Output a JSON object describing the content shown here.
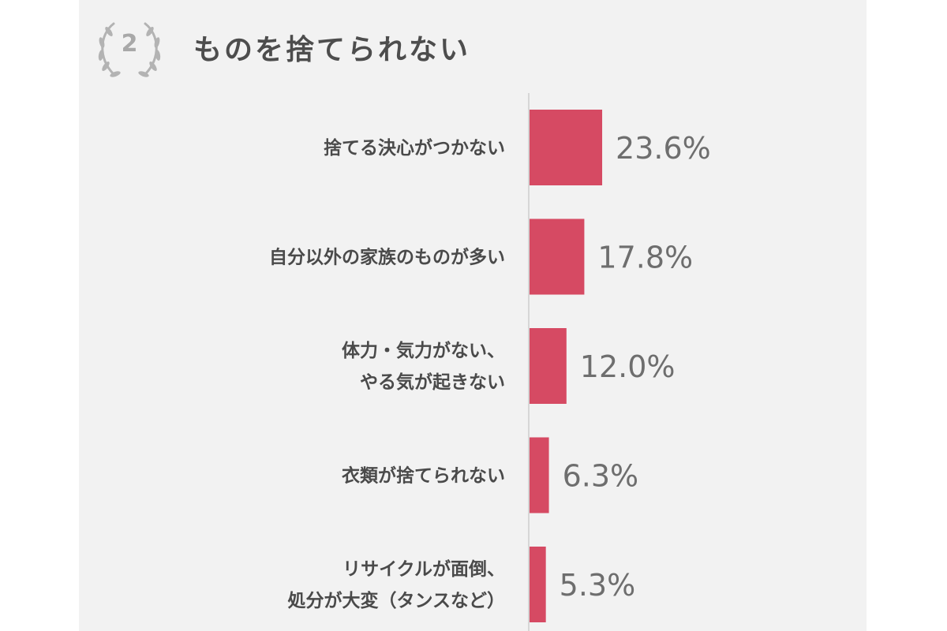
{
  "rank": "2",
  "title": "ものを捨てられない",
  "colors": {
    "bar": "#d64a63",
    "axis": "#cccccc",
    "category_text": "#4a4a4a",
    "value_text": "#6e6e6e",
    "badge": "#b3b3b3",
    "panel": "#f2f2f2"
  },
  "chart_data": {
    "type": "bar",
    "orientation": "horizontal",
    "title": "ものを捨てられない",
    "categories": [
      [
        "捨てる決心がつかない"
      ],
      [
        "自分以外の家族のものが多い"
      ],
      [
        "体力・気力がない、",
        "やる気が起きない"
      ],
      [
        "衣類が捨てられない"
      ],
      [
        "リサイクルが面倒、",
        "処分が大変（タンスなど）"
      ]
    ],
    "values": [
      23.6,
      17.8,
      12.0,
      6.3,
      5.3
    ],
    "value_labels": [
      "23.6%",
      "17.8%",
      "12.0%",
      "6.3%",
      "5.3%"
    ],
    "unit": "%",
    "xlim": [
      0,
      100
    ],
    "grid": false,
    "legend": "none"
  }
}
